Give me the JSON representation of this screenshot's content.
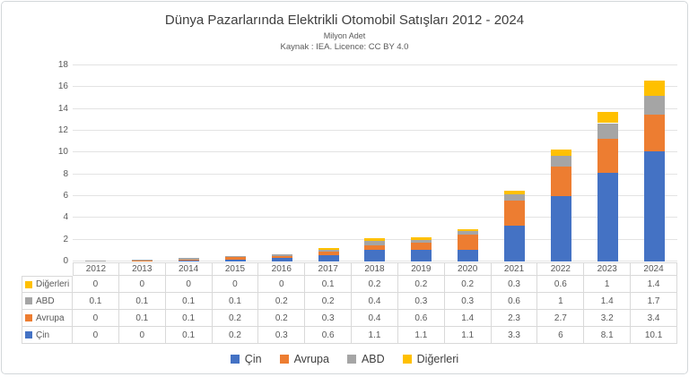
{
  "window": {
    "background": "#ffffff",
    "border_color": "#d3d7da"
  },
  "chart_data": {
    "type": "bar",
    "stacked": true,
    "title": "Dünya Pazarlarında Elektrikli Otomobil Satışları 2012 - 2024",
    "subtitle": "Milyon Adet",
    "source": "Kaynak : IEA. Licence: CC BY 4.0",
    "categories": [
      "2012",
      "2013",
      "2014",
      "2015",
      "2016",
      "2017",
      "2018",
      "2019",
      "2020",
      "2021",
      "2022",
      "2023",
      "2024"
    ],
    "series": [
      {
        "name": "Çin",
        "color": "#4472C4",
        "values": [
          0,
          0,
          0.1,
          0.2,
          0.3,
          0.6,
          1.1,
          1.1,
          1.1,
          3.3,
          6,
          8.1,
          10.1
        ]
      },
      {
        "name": "Avrupa",
        "color": "#ED7D31",
        "values": [
          0,
          0.1,
          0.1,
          0.2,
          0.2,
          0.3,
          0.4,
          0.6,
          1.4,
          2.3,
          2.7,
          3.2,
          3.4
        ]
      },
      {
        "name": "ABD",
        "color": "#A5A5A5",
        "values": [
          0.1,
          0.1,
          0.1,
          0.1,
          0.2,
          0.2,
          0.4,
          0.3,
          0.3,
          0.6,
          1,
          1.4,
          1.7
        ]
      },
      {
        "name": "Diğerleri",
        "color": "#FFC000",
        "values": [
          0,
          0,
          0,
          0,
          0,
          0.1,
          0.2,
          0.2,
          0.2,
          0.3,
          0.6,
          1,
          1.4
        ]
      }
    ],
    "ylim": [
      0,
      18
    ],
    "ytick_step": 2,
    "grid": true,
    "gridline_color": "#e3e3e3",
    "legend_position": "bottom",
    "data_table": true,
    "table_row_order": [
      "Diğerleri",
      "ABD",
      "Avrupa",
      "Çin"
    ]
  }
}
